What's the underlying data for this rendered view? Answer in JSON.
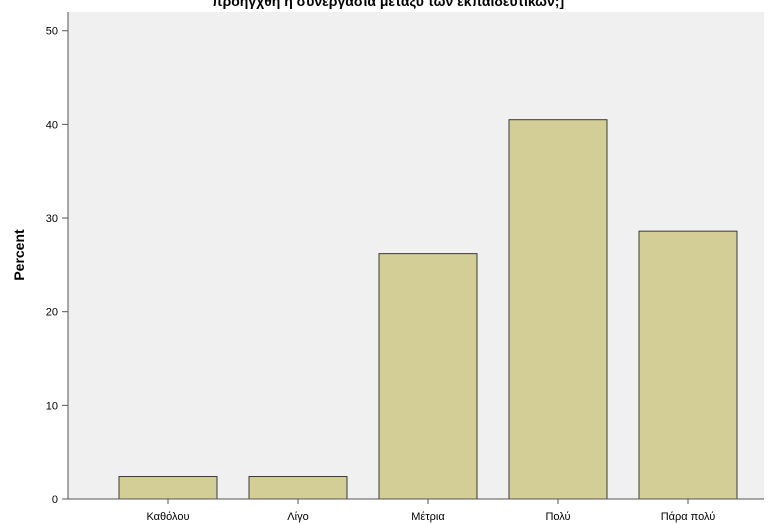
{
  "chart_data": {
    "type": "bar",
    "title": "προηγχθη η συνεργασία μεταξύ των εκπαιδευτικών;]",
    "xlabel": "",
    "ylabel": "Percent",
    "categories": [
      "Καθόλου",
      "Λίγο",
      "Μέτρια",
      "Πολύ",
      "Πάρα πολύ"
    ],
    "values": [
      2.4,
      2.4,
      26.2,
      40.5,
      28.6
    ],
    "ylim": [
      0,
      52
    ],
    "yticks": [
      0,
      10,
      20,
      30,
      40,
      50
    ],
    "grid": false,
    "legend": "none",
    "colors": {
      "bar_fill": "#d3cd96",
      "bar_stroke": "#3a3a3a",
      "plot_background": "#f0f0f0",
      "axis": "#555555"
    }
  }
}
